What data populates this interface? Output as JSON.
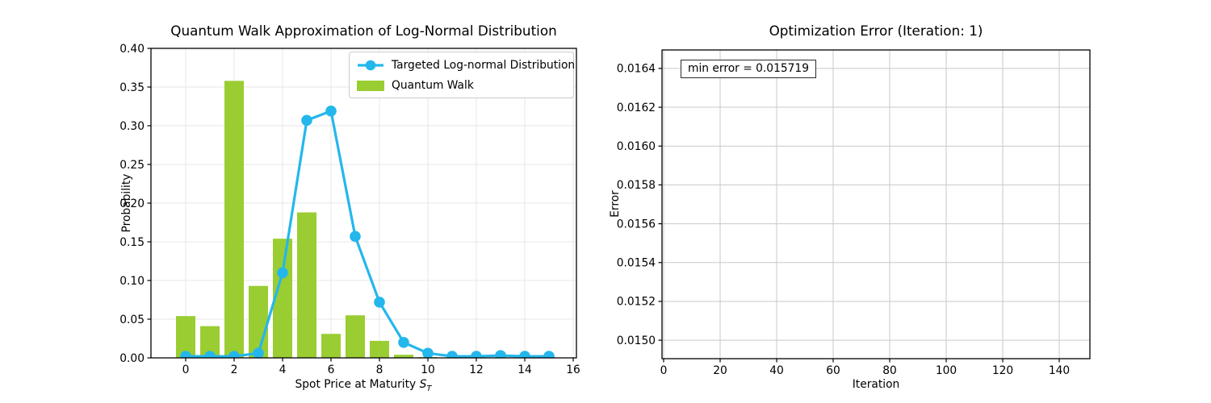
{
  "figure": {
    "background": "#ffffff"
  },
  "colors": {
    "line": "#24B7EC",
    "bar": "#9ACD32",
    "grid_left": "#e7e7e7",
    "grid_right": "#c9c9c9",
    "spine": "#000000"
  },
  "chart_data": [
    {
      "type": "composite",
      "title": "Quantum Walk Approximation of Log-Normal Distribution",
      "xlabel_prefix": "Spot Price at Maturity ",
      "xlabel_math": {
        "base": "S",
        "sub": "T"
      },
      "ylabel": "Probability",
      "x": [
        0,
        1,
        2,
        3,
        4,
        5,
        6,
        7,
        8,
        9,
        10,
        11,
        12,
        13,
        14,
        15
      ],
      "series": [
        {
          "name": "Targeted Log-normal Distribution",
          "type": "line",
          "color": "#24B7EC",
          "values": [
            0.002,
            0.002,
            0.002,
            0.006,
            0.11,
            0.307,
            0.319,
            0.157,
            0.072,
            0.02,
            0.006,
            0.002,
            0.002,
            0.003,
            0.002,
            0.002
          ]
        },
        {
          "name": "Quantum Walk",
          "type": "bar",
          "color": "#9ACD32",
          "values": [
            0.054,
            0.041,
            0.358,
            0.093,
            0.154,
            0.188,
            0.031,
            0.055,
            0.022,
            0.004,
            0.001,
            0,
            0,
            0,
            0,
            0
          ]
        }
      ],
      "xlim": [
        -1.43,
        16.15
      ],
      "ylim": [
        0,
        0.4
      ],
      "xticks": [
        0,
        2,
        4,
        6,
        8,
        10,
        12,
        14,
        16
      ],
      "yticks": [
        0,
        0.05,
        0.1,
        0.15,
        0.2,
        0.25,
        0.3,
        0.35,
        0.4
      ],
      "ytick_labels": [
        "0.00",
        "0.05",
        "0.10",
        "0.15",
        "0.20",
        "0.25",
        "0.30",
        "0.35",
        "0.40"
      ],
      "grid": true,
      "legend_location": "upper right"
    },
    {
      "type": "line",
      "title": "Optimization Error (Iteration: 1)",
      "xlabel": "Iteration",
      "ylabel": "Error",
      "series": [],
      "annotation": "min error = 0.015719",
      "xlim": [
        0,
        151
      ],
      "ylim": [
        0.014905,
        0.016495
      ],
      "xticks": [
        0,
        20,
        40,
        60,
        80,
        100,
        120,
        140
      ],
      "yticks": [
        0.015,
        0.0152,
        0.0154,
        0.0156,
        0.0158,
        0.016,
        0.0162,
        0.0164
      ],
      "ytick_labels": [
        "0.0150",
        "0.0152",
        "0.0154",
        "0.0156",
        "0.0158",
        "0.0160",
        "0.0162",
        "0.0164"
      ],
      "grid": true
    }
  ]
}
